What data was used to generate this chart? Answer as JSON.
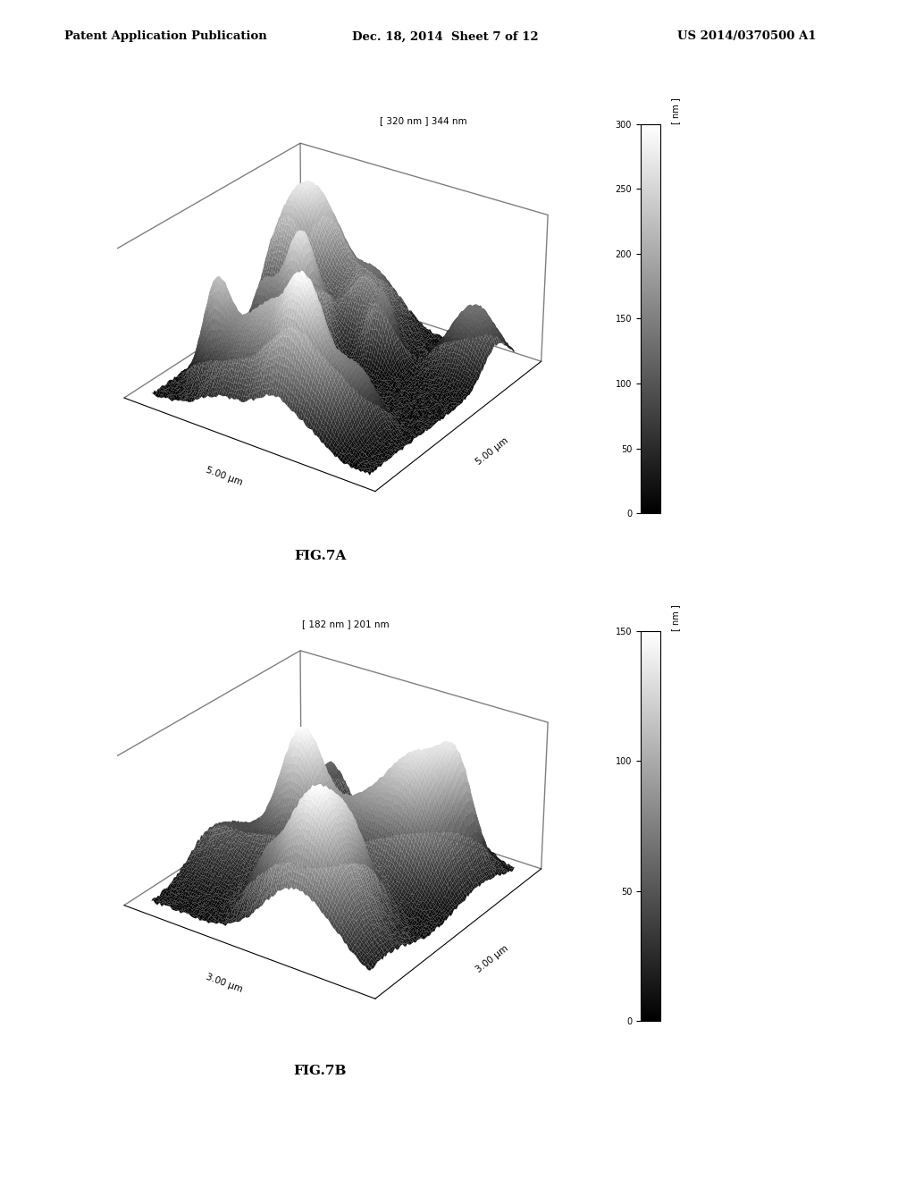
{
  "page_title_left": "Patent Application Publication",
  "page_title_center": "Dec. 18, 2014  Sheet 7 of 12",
  "page_title_right": "US 2014/0370500 A1",
  "fig7a_label": "FIG.7A",
  "fig7b_label": "FIG.7B",
  "fig7a_annotation": "[ 320 nm ] 344 nm",
  "fig7b_annotation": "[ 182 nm ] 201 nm",
  "fig7a_colorbar_ticks": [
    0,
    50,
    100,
    150,
    200,
    250,
    300
  ],
  "fig7a_colorbar_label": "[ nm ]",
  "fig7a_colorbar_max": 300,
  "fig7b_colorbar_ticks": [
    0,
    50,
    100,
    150
  ],
  "fig7b_colorbar_label": "[ nm ]",
  "fig7b_colorbar_max": 150,
  "fig7a_xaxis_label": "5.00 μm",
  "fig7a_yaxis_label": "5.00 μm",
  "fig7b_xaxis_label": "3.00 μm",
  "fig7b_yaxis_label": "3.00 μm",
  "background_color": "#ffffff",
  "text_color": "#000000",
  "fig7a_elev": 28,
  "fig7a_azim": -55,
  "fig7b_elev": 28,
  "fig7b_azim": -55
}
